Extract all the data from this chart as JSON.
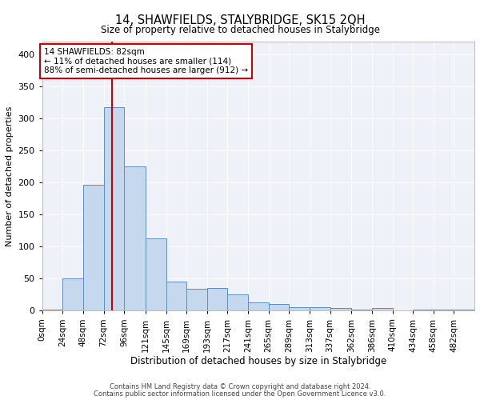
{
  "title": "14, SHAWFIELDS, STALYBRIDGE, SK15 2QH",
  "subtitle": "Size of property relative to detached houses in Stalybridge",
  "xlabel": "Distribution of detached houses by size in Stalybridge",
  "ylabel": "Number of detached properties",
  "bar_color": "#c5d8ed",
  "bar_edge_color": "#5a8fc0",
  "background_color": "#eef2f8",
  "grid_color": "#ffffff",
  "vline_x": 82,
  "vline_color": "#cc0000",
  "annotation_box_text": "14 SHAWFIELDS: 82sqm\n← 11% of detached houses are smaller (114)\n88% of semi-detached houses are larger (912) →",
  "annotation_box_color": "#cc0000",
  "bin_edges": [
    0,
    24,
    48,
    72,
    96,
    121,
    145,
    169,
    193,
    217,
    241,
    265,
    289,
    313,
    337,
    362,
    386,
    410,
    434,
    458,
    482,
    506
  ],
  "xtick_labels": [
    "0sqm",
    "24sqm",
    "48sqm",
    "72sqm",
    "96sqm",
    "121sqm",
    "145sqm",
    "169sqm",
    "193sqm",
    "217sqm",
    "241sqm",
    "265sqm",
    "289sqm",
    "313sqm",
    "337sqm",
    "362sqm",
    "386sqm",
    "410sqm",
    "434sqm",
    "458sqm",
    "482sqm"
  ],
  "bar_heights": [
    2,
    50,
    197,
    318,
    225,
    113,
    46,
    34,
    35,
    25,
    13,
    10,
    6,
    5,
    4,
    2,
    4,
    0,
    2,
    2,
    2
  ],
  "ylim": [
    0,
    420
  ],
  "yticks": [
    0,
    50,
    100,
    150,
    200,
    250,
    300,
    350,
    400
  ],
  "footer_line1": "Contains HM Land Registry data © Crown copyright and database right 2024.",
  "footer_line2": "Contains public sector information licensed under the Open Government Licence v3.0."
}
